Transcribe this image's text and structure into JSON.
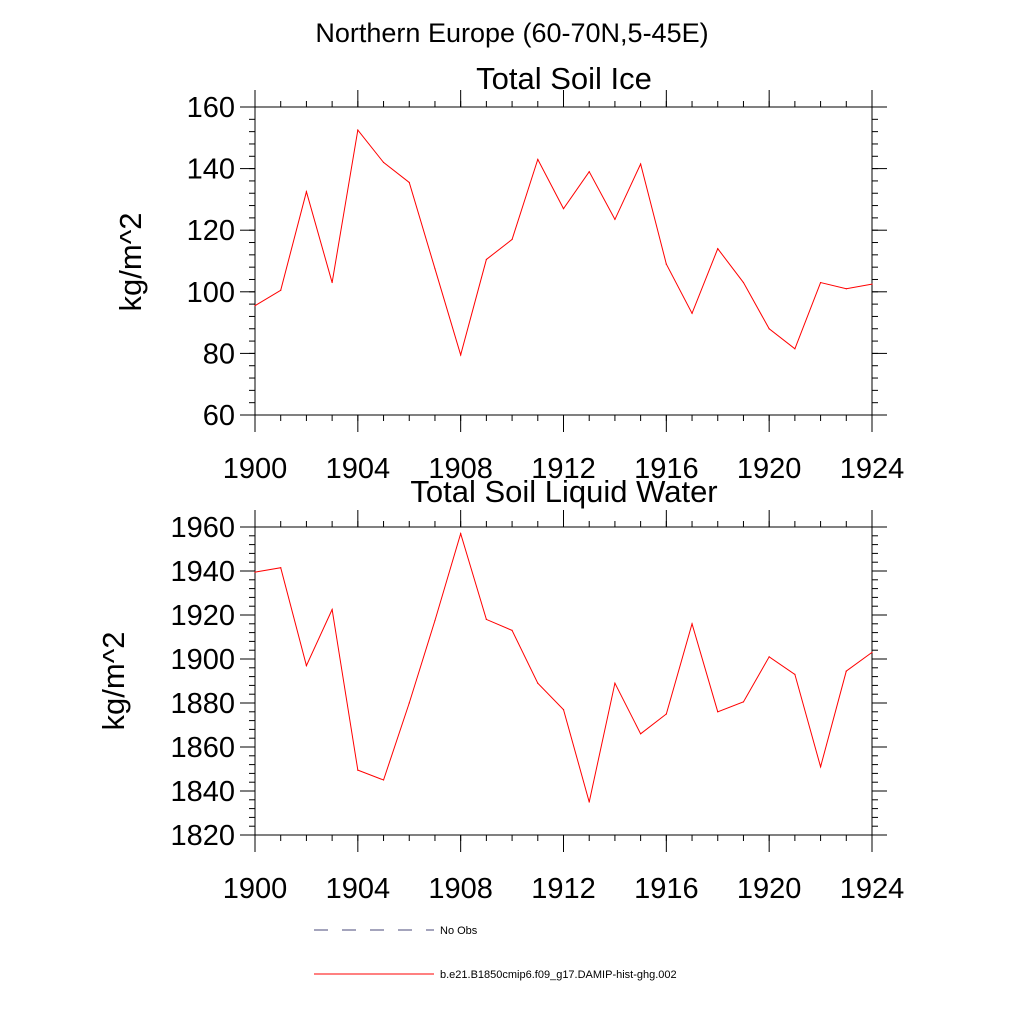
{
  "figure_title": "Northern Europe (60-70N,5-45E)",
  "legend": {
    "items": [
      {
        "label": "No Obs",
        "style": "dashed",
        "color": "#4a4a7a"
      },
      {
        "label": "b.e21.B1850cmip6.f09_g17.DAMIP-hist-ghg.002",
        "style": "solid",
        "color": "#ff0000"
      }
    ]
  },
  "chart_data": [
    {
      "type": "line",
      "title": "Total Soil Ice",
      "xlabel": "",
      "ylabel": "kg/m^2",
      "xlim": [
        1900,
        1924
      ],
      "ylim": [
        60,
        160
      ],
      "xticks": [
        1900,
        1904,
        1908,
        1912,
        1916,
        1920,
        1924
      ],
      "yticks": [
        60,
        80,
        100,
        120,
        140,
        160
      ],
      "grid": false,
      "series": [
        {
          "name": "b.e21.B1850cmip6.f09_g17.DAMIP-hist-ghg.002",
          "color": "#ff0000",
          "x": [
            1900,
            1901,
            1902,
            1903,
            1904,
            1905,
            1906,
            1907,
            1908,
            1909,
            1910,
            1911,
            1912,
            1913,
            1914,
            1915,
            1916,
            1917,
            1918,
            1919,
            1920,
            1921,
            1922,
            1923,
            1924
          ],
          "y": [
            95.5,
            100.5,
            132.5,
            103,
            152.5,
            142,
            135.5,
            107.5,
            79.5,
            110.5,
            117,
            143,
            127,
            139,
            123.5,
            141.5,
            109,
            93,
            114,
            103,
            88,
            81.5,
            103,
            101,
            102.5
          ]
        }
      ]
    },
    {
      "type": "line",
      "title": "Total Soil Liquid Water",
      "xlabel": "",
      "ylabel": "kg/m^2",
      "xlim": [
        1900,
        1924
      ],
      "ylim": [
        1820,
        1960
      ],
      "xticks": [
        1900,
        1904,
        1908,
        1912,
        1916,
        1920,
        1924
      ],
      "yticks": [
        1820,
        1840,
        1860,
        1880,
        1900,
        1920,
        1940,
        1960
      ],
      "grid": false,
      "series": [
        {
          "name": "b.e21.B1850cmip6.f09_g17.DAMIP-hist-ghg.002",
          "color": "#ff0000",
          "x": [
            1900,
            1901,
            1902,
            1903,
            1904,
            1905,
            1906,
            1907,
            1908,
            1909,
            1910,
            1911,
            1912,
            1913,
            1914,
            1915,
            1916,
            1917,
            1918,
            1919,
            1920,
            1921,
            1922,
            1923,
            1924
          ],
          "y": [
            1939.5,
            1941.5,
            1897,
            1922.5,
            1849.5,
            1845,
            1880,
            1917.5,
            1957,
            1918,
            1913,
            1889,
            1877,
            1835,
            1889,
            1866,
            1875,
            1916,
            1876,
            1880.5,
            1901,
            1893,
            1851,
            1894.5,
            1903
          ]
        }
      ]
    }
  ]
}
